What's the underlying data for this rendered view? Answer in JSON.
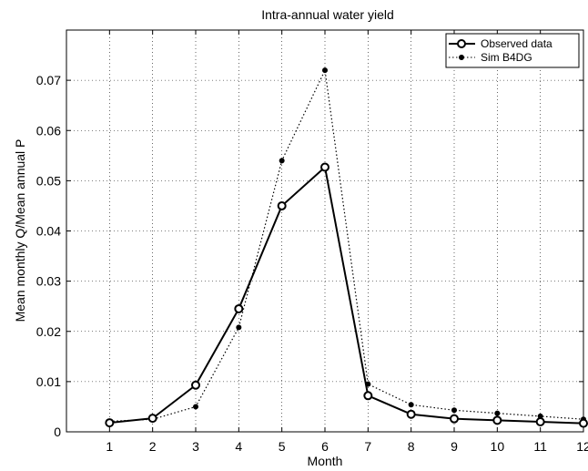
{
  "chart_data": {
    "type": "line",
    "title": "Intra-annual water yield",
    "xlabel": "Month",
    "ylabel": "Mean monthly Q/Mean annual P",
    "x": [
      1,
      2,
      3,
      4,
      5,
      6,
      7,
      8,
      9,
      10,
      11,
      12
    ],
    "xlim": [
      0,
      12
    ],
    "ylim": [
      0,
      0.08
    ],
    "xticks": [
      1,
      2,
      3,
      4,
      5,
      6,
      7,
      8,
      9,
      10,
      11,
      12
    ],
    "yticks": [
      0,
      0.01,
      0.02,
      0.03,
      0.04,
      0.05,
      0.06,
      0.07
    ],
    "ytick_labels": [
      "0",
      "0.01",
      "0.02",
      "0.03",
      "0.04",
      "0.05",
      "0.06",
      "0.07"
    ],
    "grid": true,
    "legend_position": "top-right",
    "series": [
      {
        "name": "Observed data",
        "style": "solid",
        "marker": "open-circle",
        "color": "#000000",
        "values": [
          0.0018,
          0.0027,
          0.0093,
          0.0245,
          0.045,
          0.0527,
          0.0072,
          0.0035,
          0.0026,
          0.0023,
          0.002,
          0.0017
        ]
      },
      {
        "name": "Sim B4DG",
        "style": "dotted",
        "marker": "filled-dot",
        "color": "#000000",
        "values": [
          0.0021,
          0.0025,
          0.005,
          0.0208,
          0.054,
          0.072,
          0.0095,
          0.0054,
          0.0043,
          0.0037,
          0.0031,
          0.0025
        ]
      }
    ]
  }
}
